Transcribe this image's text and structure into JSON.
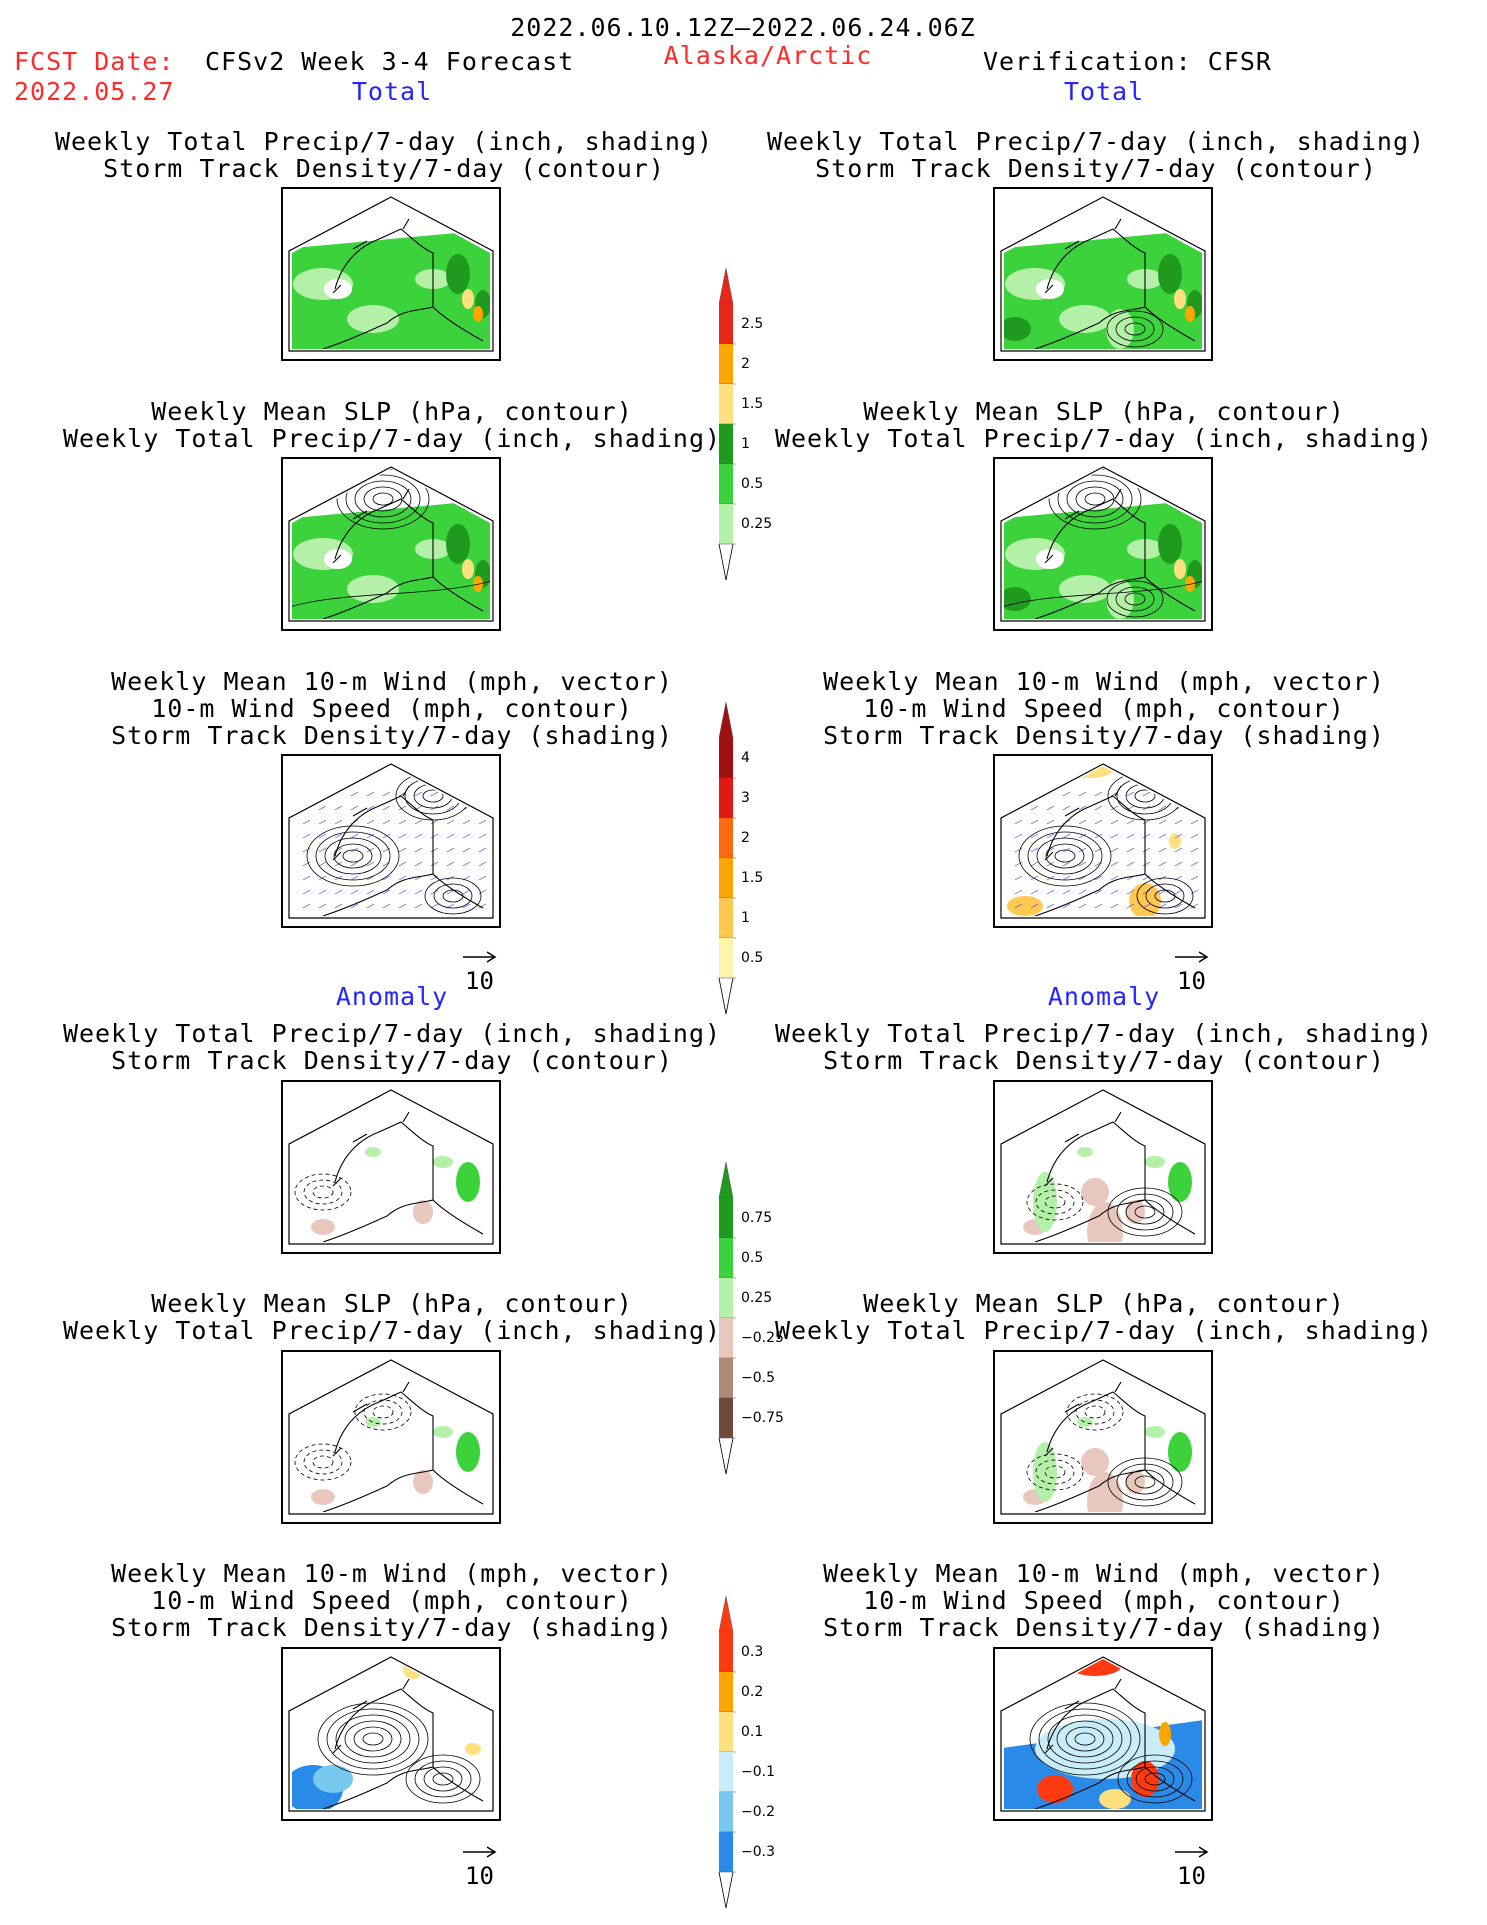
{
  "header": {
    "date_range": "2022.06.10.12Z—2022.06.24.06Z",
    "fcst_label": "FCST Date:",
    "fcst_date": "2022.05.27",
    "forecast_title": "CFSv2 Week 3-4 Forecast",
    "region": "Alaska/Arctic",
    "verification": "Verification: CFSR"
  },
  "sections": {
    "total_label": "Total",
    "anomaly_label": "Anomaly"
  },
  "titles": {
    "precip_storm": [
      "Weekly Total Precip/7-day (inch, shading)",
      "Storm Track Density/7-day (contour)"
    ],
    "slp_precip": [
      "Weekly Mean SLP (hPa, contour)",
      "Weekly Total Precip/7-day (inch, shading)"
    ],
    "wind_storm": [
      "Weekly Mean 10-m Wind (mph, vector)",
      "10-m Wind Speed (mph, contour)",
      "Storm Track Density/7-day (shading)"
    ]
  },
  "vector_reference": "10",
  "colorbars": {
    "total_precip": {
      "labels": [
        "2.5",
        "2",
        "1.5",
        "1",
        "0.5",
        "0.25"
      ],
      "colors": [
        "#e8261a",
        "#ffa500",
        "#ffe080",
        "#1f9a1f",
        "#3cd23c",
        "#b4f0a8"
      ]
    },
    "storm_density": {
      "labels": [
        "4",
        "3",
        "2",
        "1.5",
        "1",
        "0.5"
      ],
      "colors": [
        "#a01010",
        "#e01a10",
        "#ff6a10",
        "#ffa500",
        "#ffc850",
        "#fff5a8"
      ]
    },
    "precip_anomaly": {
      "labels": [
        "0.75",
        "0.5",
        "0.25",
        "−0.25",
        "−0.5",
        "−0.75"
      ],
      "colors": [
        "#1f9a1f",
        "#3cd23c",
        "#b4f0a8",
        "#e8c8bc",
        "#b08878",
        "#6e4a3a"
      ]
    },
    "storm_anomaly": {
      "labels": [
        "0.3",
        "0.2",
        "0.1",
        "−0.1",
        "−0.2",
        "−0.3"
      ],
      "colors": [
        "#ff3a10",
        "#ffa500",
        "#ffe080",
        "#c8ecf8",
        "#78c8f0",
        "#2a8ae8"
      ]
    }
  }
}
